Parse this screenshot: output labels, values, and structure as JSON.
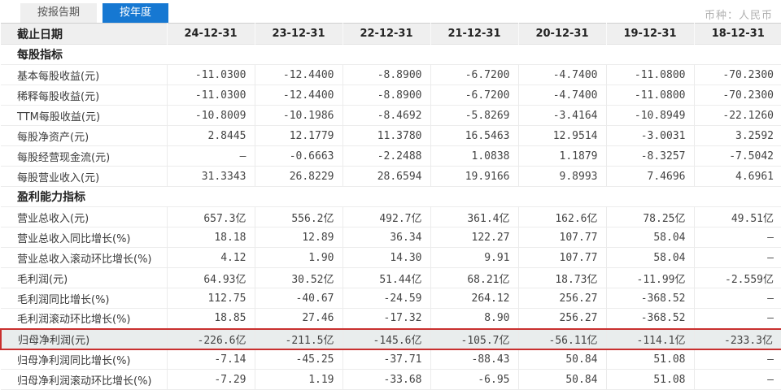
{
  "tabs": [
    {
      "label": "按报告期",
      "active": false
    },
    {
      "label": "按年度",
      "active": true
    }
  ],
  "currency_label": "币种：人民币",
  "colors": {
    "tab_active_bg": "#1678d2",
    "tab_inactive_bg": "#efefef",
    "header_row_bg": "#efefef",
    "highlight_border": "#c9302f",
    "highlight_row_bg": "#e9eded"
  },
  "table": {
    "header": [
      "截止日期",
      "24-12-31",
      "23-12-31",
      "22-12-31",
      "21-12-31",
      "20-12-31",
      "19-12-31",
      "18-12-31"
    ],
    "rows": [
      {
        "type": "section",
        "label": "每股指标"
      },
      {
        "type": "data",
        "label": "基本每股收益(元)",
        "values": [
          "-11.0300",
          "-12.4400",
          "-8.8900",
          "-6.7200",
          "-4.7400",
          "-11.0800",
          "-70.2300"
        ]
      },
      {
        "type": "data",
        "label": "稀释每股收益(元)",
        "values": [
          "-11.0300",
          "-12.4400",
          "-8.8900",
          "-6.7200",
          "-4.7400",
          "-11.0800",
          "-70.2300"
        ]
      },
      {
        "type": "data",
        "label": "TTM每股收益(元)",
        "values": [
          "-10.8009",
          "-10.1986",
          "-8.4692",
          "-5.8269",
          "-3.4164",
          "-10.8949",
          "-22.1260"
        ]
      },
      {
        "type": "data",
        "label": "每股净资产(元)",
        "values": [
          "2.8445",
          "12.1779",
          "11.3780",
          "16.5463",
          "12.9514",
          "-3.0031",
          "3.2592"
        ]
      },
      {
        "type": "data",
        "label": "每股经营现金流(元)",
        "values": [
          "—",
          "-0.6663",
          "-2.2488",
          "1.0838",
          "1.1879",
          "-8.3257",
          "-7.5042"
        ]
      },
      {
        "type": "data",
        "label": "每股营业收入(元)",
        "values": [
          "31.3343",
          "26.8229",
          "28.6594",
          "19.9166",
          "9.8993",
          "7.4696",
          "4.6961"
        ]
      },
      {
        "type": "section",
        "label": "盈利能力指标"
      },
      {
        "type": "data",
        "label": "营业总收入(元)",
        "values": [
          "657.3亿",
          "556.2亿",
          "492.7亿",
          "361.4亿",
          "162.6亿",
          "78.25亿",
          "49.51亿"
        ]
      },
      {
        "type": "data",
        "label": "营业总收入同比增长(%)",
        "values": [
          "18.18",
          "12.89",
          "36.34",
          "122.27",
          "107.77",
          "58.04",
          "—"
        ]
      },
      {
        "type": "data",
        "label": "营业总收入滚动环比增长(%)",
        "values": [
          "4.12",
          "1.90",
          "14.30",
          "9.91",
          "107.77",
          "58.04",
          "—"
        ]
      },
      {
        "type": "data",
        "label": "毛利润(元)",
        "values": [
          "64.93亿",
          "30.52亿",
          "51.44亿",
          "68.21亿",
          "18.73亿",
          "-11.99亿",
          "-2.559亿"
        ]
      },
      {
        "type": "data",
        "label": "毛利润同比增长(%)",
        "values": [
          "112.75",
          "-40.67",
          "-24.59",
          "264.12",
          "256.27",
          "-368.52",
          "—"
        ]
      },
      {
        "type": "data",
        "label": "毛利润滚动环比增长(%)",
        "values": [
          "18.85",
          "27.46",
          "-17.32",
          "8.90",
          "256.27",
          "-368.52",
          "—"
        ]
      },
      {
        "type": "data",
        "label": "归母净利润(元)",
        "highlighted": true,
        "values": [
          "-226.6亿",
          "-211.5亿",
          "-145.6亿",
          "-105.7亿",
          "-56.11亿",
          "-114.1亿",
          "-233.3亿"
        ]
      },
      {
        "type": "data",
        "label": "归母净利润同比增长(%)",
        "values": [
          "-7.14",
          "-45.25",
          "-37.71",
          "-88.43",
          "50.84",
          "51.08",
          "—"
        ]
      },
      {
        "type": "data",
        "label": "归母净利润滚动环比增长(%)",
        "values": [
          "-7.29",
          "1.19",
          "-33.68",
          "-6.95",
          "50.84",
          "51.08",
          "—"
        ]
      }
    ]
  }
}
